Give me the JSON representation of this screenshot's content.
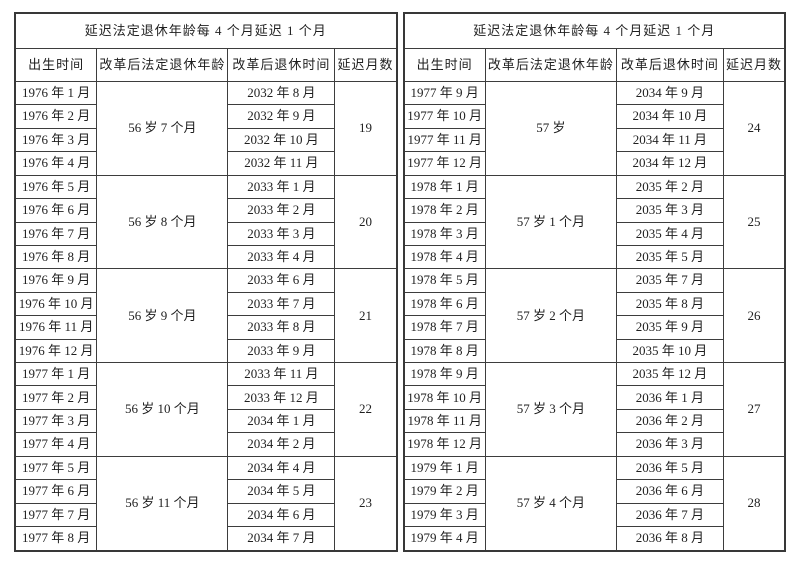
{
  "page": {
    "background_color": "#ffffff",
    "border_color": "#3d3d3d",
    "text_color": "#1f1f1f"
  },
  "tables": [
    {
      "title": "延迟法定退休年龄每 4 个月延迟 1 个月",
      "headers": [
        "出生时间",
        "改革后法定退休年龄",
        "改革后退休时间",
        "延迟月数"
      ],
      "groups": [
        {
          "age": "56 岁 7 个月",
          "delay": "19",
          "rows": [
            {
              "birth": "1976 年 1 月",
              "retire": "2032 年 8 月"
            },
            {
              "birth": "1976 年 2 月",
              "retire": "2032 年 9 月"
            },
            {
              "birth": "1976 年 3 月",
              "retire": "2032 年 10 月"
            },
            {
              "birth": "1976 年 4 月",
              "retire": "2032 年 11 月"
            }
          ]
        },
        {
          "age": "56 岁 8 个月",
          "delay": "20",
          "rows": [
            {
              "birth": "1976 年 5 月",
              "retire": "2033 年 1 月"
            },
            {
              "birth": "1976 年 6 月",
              "retire": "2033 年 2 月"
            },
            {
              "birth": "1976 年 7 月",
              "retire": "2033 年 3 月"
            },
            {
              "birth": "1976 年 8 月",
              "retire": "2033 年 4 月"
            }
          ]
        },
        {
          "age": "56 岁 9 个月",
          "delay": "21",
          "rows": [
            {
              "birth": "1976 年 9 月",
              "retire": "2033 年 6 月"
            },
            {
              "birth": "1976 年 10 月",
              "retire": "2033 年 7 月"
            },
            {
              "birth": "1976 年 11 月",
              "retire": "2033 年 8 月"
            },
            {
              "birth": "1976 年 12 月",
              "retire": "2033 年 9 月"
            }
          ]
        },
        {
          "age": "56 岁 10 个月",
          "delay": "22",
          "rows": [
            {
              "birth": "1977 年 1 月",
              "retire": "2033 年 11 月"
            },
            {
              "birth": "1977 年 2 月",
              "retire": "2033 年 12 月"
            },
            {
              "birth": "1977 年 3 月",
              "retire": "2034 年 1 月"
            },
            {
              "birth": "1977 年 4 月",
              "retire": "2034 年 2 月"
            }
          ]
        },
        {
          "age": "56 岁 11 个月",
          "delay": "23",
          "rows": [
            {
              "birth": "1977 年 5 月",
              "retire": "2034 年 4 月"
            },
            {
              "birth": "1977 年 6 月",
              "retire": "2034 年 5 月"
            },
            {
              "birth": "1977 年 7 月",
              "retire": "2034 年 6 月"
            },
            {
              "birth": "1977 年 8 月",
              "retire": "2034 年 7 月"
            }
          ]
        }
      ]
    },
    {
      "title": "延迟法定退休年龄每 4 个月延迟 1 个月",
      "headers": [
        "出生时间",
        "改革后法定退休年龄",
        "改革后退休时间",
        "延迟月数"
      ],
      "groups": [
        {
          "age": "57 岁",
          "delay": "24",
          "rows": [
            {
              "birth": "1977 年 9 月",
              "retire": "2034 年 9 月"
            },
            {
              "birth": "1977 年 10 月",
              "retire": "2034 年 10 月"
            },
            {
              "birth": "1977 年 11 月",
              "retire": "2034 年 11 月"
            },
            {
              "birth": "1977 年 12 月",
              "retire": "2034 年 12 月"
            }
          ]
        },
        {
          "age": "57 岁 1 个月",
          "delay": "25",
          "rows": [
            {
              "birth": "1978 年 1 月",
              "retire": "2035 年 2 月"
            },
            {
              "birth": "1978 年 2 月",
              "retire": "2035 年 3 月"
            },
            {
              "birth": "1978 年 3 月",
              "retire": "2035 年 4 月"
            },
            {
              "birth": "1978 年 4 月",
              "retire": "2035 年 5 月"
            }
          ]
        },
        {
          "age": "57 岁 2 个月",
          "delay": "26",
          "rows": [
            {
              "birth": "1978 年 5 月",
              "retire": "2035 年 7 月"
            },
            {
              "birth": "1978 年 6 月",
              "retire": "2035 年 8 月"
            },
            {
              "birth": "1978 年 7 月",
              "retire": "2035 年 9 月"
            },
            {
              "birth": "1978 年 8 月",
              "retire": "2035 年 10 月"
            }
          ]
        },
        {
          "age": "57 岁 3 个月",
          "delay": "27",
          "rows": [
            {
              "birth": "1978 年 9 月",
              "retire": "2035 年 12 月"
            },
            {
              "birth": "1978 年 10 月",
              "retire": "2036 年 1 月"
            },
            {
              "birth": "1978 年 11 月",
              "retire": "2036 年 2 月"
            },
            {
              "birth": "1978 年 12 月",
              "retire": "2036 年 3 月"
            }
          ]
        },
        {
          "age": "57 岁 4 个月",
          "delay": "28",
          "rows": [
            {
              "birth": "1979 年 1 月",
              "retire": "2036 年 5 月"
            },
            {
              "birth": "1979 年 2 月",
              "retire": "2036 年 6 月"
            },
            {
              "birth": "1979 年 3 月",
              "retire": "2036 年 7 月"
            },
            {
              "birth": "1979 年 4 月",
              "retire": "2036 年 8 月"
            }
          ]
        }
      ]
    }
  ]
}
